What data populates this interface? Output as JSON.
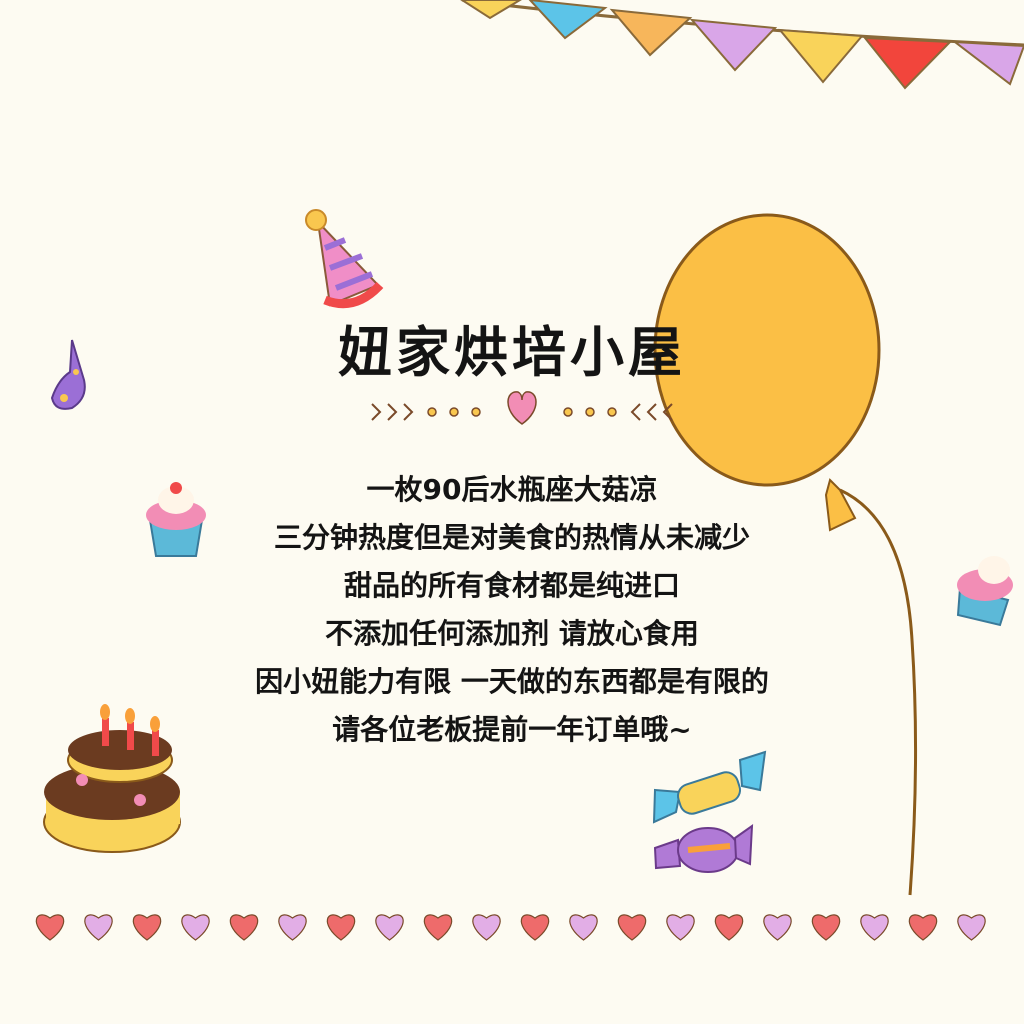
{
  "title": "妞家烘培小屋",
  "lines": [
    "一枚90后水瓶座大菇凉",
    "三分钟热度但是对美食的热情从未减少",
    "甜品的所有食材都是纯进口",
    "不添加任何添加剂 请放心食用",
    "因小妞能力有限 一天做的东西都是有限的",
    "请各位老板提前一年订单哦~"
  ],
  "decorations": [
    "bunting-flags",
    "party-hat-icon",
    "party-horn-icon",
    "balloon-icon",
    "cupcake-icon",
    "birthday-cake-icon",
    "candy-icon",
    "heart-border"
  ],
  "colors": {
    "background": "#fdfbf2",
    "balloon": "#fbbf45",
    "heart_red": "#ee6b6b",
    "heart_lilac": "#e2aee6",
    "text": "#141414"
  }
}
